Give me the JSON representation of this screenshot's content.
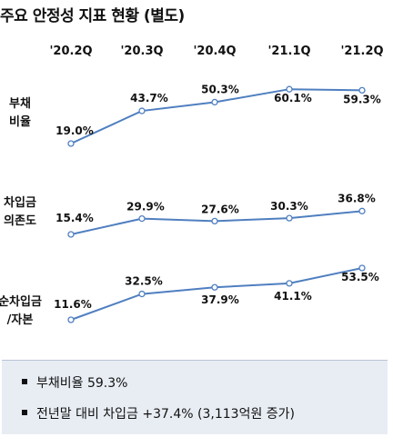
{
  "page": {
    "title": "주요 안정성 지표 현황 (별도)"
  },
  "chart_data": {
    "type": "line",
    "title": "주요 안정성 지표 현황 (별도)",
    "categories": [
      "'20.2Q",
      "'20.3Q",
      "'20.4Q",
      "'21.1Q",
      "'21.2Q"
    ],
    "series": [
      {
        "name": "부채비율",
        "name_lines": [
          "부채",
          "비율"
        ],
        "values": [
          19.0,
          43.7,
          50.3,
          60.1,
          59.3
        ],
        "value_labels": [
          "19.0%",
          "43.7%",
          "50.3%",
          "60.1%",
          "59.3%"
        ]
      },
      {
        "name": "차입금의존도",
        "name_lines": [
          "차입금",
          "의존도"
        ],
        "values": [
          15.4,
          29.9,
          27.6,
          30.3,
          36.8
        ],
        "value_labels": [
          "15.4%",
          "29.9%",
          "27.6%",
          "30.3%",
          "36.8%"
        ]
      },
      {
        "name": "순차입금/자본",
        "name_lines": [
          "순차입금",
          "/자본"
        ],
        "values": [
          11.6,
          32.5,
          37.9,
          41.1,
          53.5
        ],
        "value_labels": [
          "11.6%",
          "32.5%",
          "37.9%",
          "41.1%",
          "53.5%"
        ]
      }
    ],
    "colors": {
      "line": "#4f7fc0",
      "marker_fill": "#ffffff"
    },
    "grid": false,
    "legend": "left"
  },
  "summary": {
    "items": [
      "부채비율 59.3%",
      "전년말 대비 차입금 +37.4% (3,113억원 증가)"
    ]
  }
}
